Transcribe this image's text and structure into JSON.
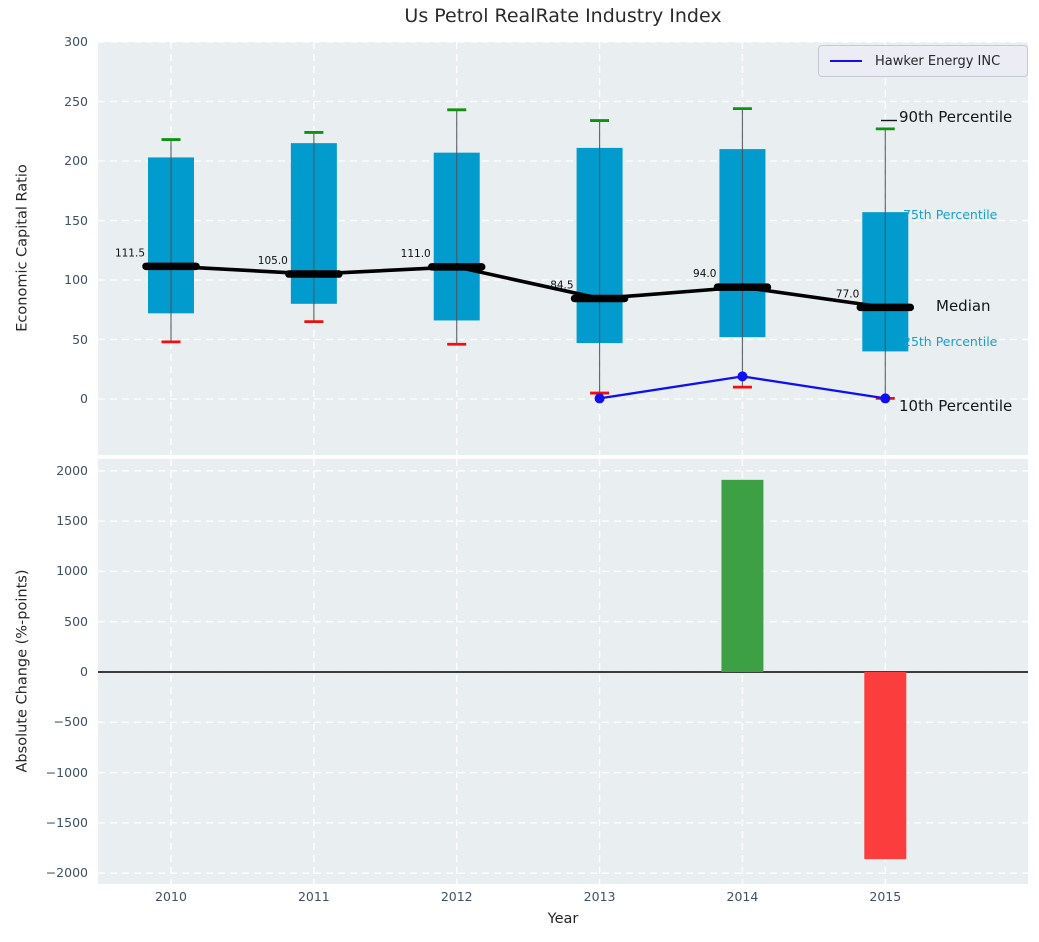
{
  "title": "Us Petrol RealRate Industry Index",
  "legend": {
    "label": "Hawker Energy INC"
  },
  "axis_labels": {
    "x": "Year",
    "y_top": "Economic Capital Ratio",
    "y_bottom": "Absolute Change (%-points)"
  },
  "annotations": {
    "p90": "90th Percentile",
    "p75": "75th Percentile",
    "median": "Median",
    "p25": "25th Percentile",
    "p10": "10th Percentile"
  },
  "colors": {
    "axes_bg": "#e9eef1",
    "grid": "#ffffff",
    "box_fill": "#029bce",
    "whisker_line": "#4a545c",
    "cap_top": "#0d9310",
    "cap_bottom": "#f20c0c",
    "median_line": "#000000",
    "company_line": "#0f0ff0",
    "bar_positive": "#3da044",
    "bar_negative": "#fb3d3d",
    "tick_label": "#3d5166",
    "annotation_accent": "#18a0cd",
    "zero_line": "#000000"
  },
  "chart_data": [
    {
      "type": "boxplot",
      "title": "Us Petrol RealRate Industry Index",
      "xlabel": "Year",
      "ylabel": "Economic Capital Ratio",
      "ylim": [
        -47,
        300
      ],
      "yticks": [
        300,
        250,
        200,
        150,
        100,
        50,
        0
      ],
      "grid": true,
      "categories": [
        2010,
        2011,
        2012,
        2013,
        2014,
        2015
      ],
      "boxes": [
        {
          "year": 2010,
          "p10": 48,
          "q1": 72,
          "median": 111.5,
          "q3": 203,
          "p90": 218
        },
        {
          "year": 2011,
          "p10": 65,
          "q1": 80,
          "median": 105.0,
          "q3": 215,
          "p90": 224
        },
        {
          "year": 2012,
          "p10": 46,
          "q1": 66,
          "median": 111.0,
          "q3": 207,
          "p90": 243
        },
        {
          "year": 2013,
          "p10": 5,
          "q1": 47,
          "median": 84.5,
          "q3": 211,
          "p90": 234
        },
        {
          "year": 2014,
          "p10": 10,
          "q1": 52,
          "median": 94.0,
          "q3": 210,
          "p90": 244
        },
        {
          "year": 2015,
          "p10": 0.5,
          "q1": 40,
          "median": 77.0,
          "q3": 157,
          "p90": 227
        }
      ],
      "median_labels": [
        "111.5",
        "105.0",
        "111.0",
        "84.5",
        "94.0",
        "77.0"
      ],
      "series": [
        {
          "name": "Hawker Energy INC",
          "type": "line",
          "x": [
            2013,
            2014,
            2015
          ],
          "y": [
            0.5,
            19,
            0.5
          ]
        }
      ],
      "legend_position": "upper right"
    },
    {
      "type": "bar",
      "xlabel": "Year",
      "ylabel": "Absolute Change (%-points)",
      "ylim": [
        -2100,
        2100
      ],
      "yticks": [
        2000,
        1500,
        1000,
        500,
        0,
        -500,
        -1000,
        -1500,
        -2000
      ],
      "grid": true,
      "categories": [
        2010,
        2011,
        2012,
        2013,
        2014,
        2015
      ],
      "values": [
        null,
        null,
        null,
        null,
        1910,
        -1860
      ],
      "bar_color_keys": [
        null,
        null,
        null,
        null,
        "bar_positive",
        "bar_negative"
      ]
    }
  ]
}
